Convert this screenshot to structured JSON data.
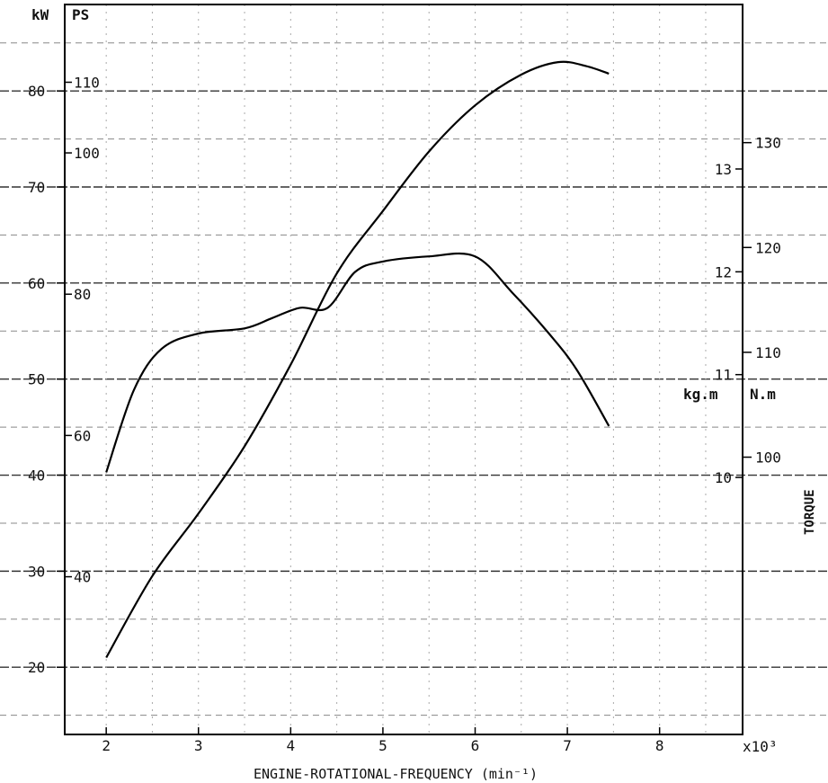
{
  "chart_data": {
    "type": "line",
    "xlabel": "ENGINE-ROTATIONAL-FREQUENCY (min⁻¹)",
    "x_multiplier": "x10³",
    "x_ticks": [
      "2",
      "3",
      "4",
      "5",
      "6",
      "7",
      "8"
    ],
    "xlim": [
      1.55,
      8.9
    ],
    "left_axes": {
      "kw": {
        "unit": "kW",
        "ticks": [
          "20",
          "30",
          "40",
          "50",
          "60",
          "70",
          "80"
        ],
        "ylim": [
          13,
          89
        ]
      },
      "ps": {
        "unit": "PS",
        "ticks": [
          "40",
          "60",
          "80",
          "100",
          "110"
        ]
      }
    },
    "right_axes": {
      "kgm": {
        "unit": "kg.m",
        "ticks": [
          "10",
          "11",
          "12",
          "13"
        ],
        "ylim": [
          7.5,
          14.6
        ]
      },
      "nm": {
        "unit": "N.m",
        "ticks": [
          "100",
          "110",
          "120",
          "130"
        ]
      }
    },
    "torque_label": "TORQUE",
    "grid": true,
    "series": [
      {
        "axis": "kW",
        "values": [
          [
            2.0,
            21
          ],
          [
            2.5,
            29.5
          ],
          [
            3.0,
            36
          ],
          [
            3.5,
            43
          ],
          [
            4.0,
            51.5
          ],
          [
            4.5,
            61
          ],
          [
            5.0,
            67.5
          ],
          [
            5.5,
            73.7
          ],
          [
            6.0,
            78.5
          ],
          [
            6.5,
            81.7
          ],
          [
            6.9,
            83
          ],
          [
            7.2,
            82.6
          ],
          [
            7.45,
            81.8
          ]
        ]
      },
      {
        "axis": "kg.m",
        "values": [
          [
            2.0,
            10.05
          ],
          [
            2.3,
            10.85
          ],
          [
            2.6,
            11.25
          ],
          [
            3.0,
            11.4
          ],
          [
            3.5,
            11.45
          ],
          [
            3.8,
            11.55
          ],
          [
            4.1,
            11.65
          ],
          [
            4.4,
            11.65
          ],
          [
            4.7,
            12.0
          ],
          [
            5.0,
            12.1
          ],
          [
            5.5,
            12.15
          ],
          [
            6.0,
            12.15
          ],
          [
            6.4,
            11.8
          ],
          [
            6.8,
            11.4
          ],
          [
            7.1,
            11.05
          ],
          [
            7.45,
            10.5
          ]
        ]
      }
    ]
  }
}
